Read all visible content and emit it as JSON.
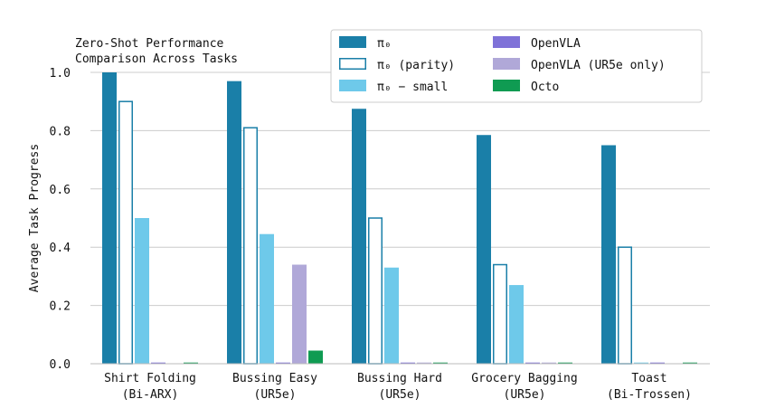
{
  "chart_data": {
    "type": "bar",
    "title": "Zero-Shot Performance\nComparison Across Tasks",
    "ylabel": "Average Task Progress",
    "xlabel": "",
    "ylim": [
      0,
      1.0
    ],
    "yticks": [
      "0.0",
      "0.2",
      "0.4",
      "0.6",
      "0.8",
      "1.0"
    ],
    "grid": "horizontal",
    "legend_position": "top-center",
    "categories": [
      "Shirt Folding\n(Bi-ARX)",
      "Bussing Easy\n(UR5e)",
      "Bussing Hard\n(UR5e)",
      "Grocery Bagging\n(UR5e)",
      "Toast\n(Bi-Trossen)"
    ],
    "series": [
      {
        "name": "π₀",
        "style": "filled",
        "color": "#1a7fa8",
        "values": [
          1.0,
          0.97,
          0.875,
          0.785,
          0.75
        ]
      },
      {
        "name": "π₀ (parity)",
        "style": "outline",
        "color": "#1a7fa8",
        "values": [
          0.9,
          0.81,
          0.5,
          0.34,
          0.4
        ]
      },
      {
        "name": "π₀ − small",
        "style": "filled",
        "color": "#6ec9ea",
        "values": [
          0.5,
          0.445,
          0.33,
          0.27,
          0.0
        ]
      },
      {
        "name": "OpenVLA",
        "style": "filled",
        "color": "#7f72d8",
        "values": [
          0.0,
          0.0,
          0.0,
          0.0,
          0.0
        ]
      },
      {
        "name": "OpenVLA (UR5e only)",
        "style": "filled",
        "color": "#b0a8d8",
        "values": [
          null,
          0.34,
          0.0,
          0.0,
          null
        ]
      },
      {
        "name": "Octo",
        "style": "filled",
        "color": "#0f9b52",
        "values": [
          0.0,
          0.045,
          0.0,
          0.0,
          0.0
        ]
      }
    ]
  }
}
